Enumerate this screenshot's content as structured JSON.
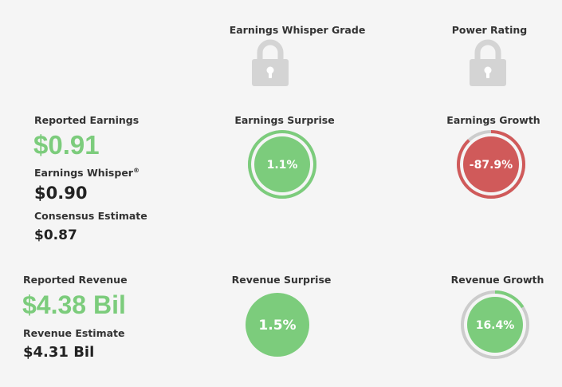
{
  "header": {
    "whisper_grade_label": "Earnings Whisper Grade",
    "power_rating_label": "Power Rating"
  },
  "earnings": {
    "reported_label": "Reported Earnings",
    "reported_value": "$0.91",
    "whisper_label": "Earnings Whisper",
    "whisper_mark": "®",
    "whisper_value": "$0.90",
    "consensus_label": "Consensus Estimate",
    "consensus_value": "$0.87",
    "surprise_label": "Earnings Surprise",
    "surprise_value": "1.1%",
    "growth_label": "Earnings Growth",
    "growth_value": "-87.9%"
  },
  "revenue": {
    "reported_label": "Reported Revenue",
    "reported_value": "$4.38 Bil",
    "estimate_label": "Revenue Estimate",
    "estimate_value": "$4.31 Bil",
    "surprise_label": "Revenue Surprise",
    "surprise_value": "1.5%",
    "growth_label": "Revenue Growth",
    "growth_value": "16.4%"
  },
  "gauges": {
    "earnings_surprise": {
      "fill_fraction": 1.0,
      "color": "#7ccc7c"
    },
    "earnings_growth": {
      "fill_fraction": 0.88,
      "color": "#d05a5a"
    },
    "revenue_surprise": {
      "fill_fraction": 1.0,
      "color": "#7ccc7c"
    },
    "revenue_growth": {
      "fill_fraction": 0.16,
      "color": "#7ccc7c"
    }
  },
  "icons": {
    "whisper_grade": "lock-icon",
    "power_rating": "lock-icon"
  },
  "colors": {
    "positive": "#7ccc7c",
    "negative": "#d05a5a",
    "track": "#cccccc",
    "lock": "#d4d4d4",
    "background": "#f5f5f5"
  }
}
